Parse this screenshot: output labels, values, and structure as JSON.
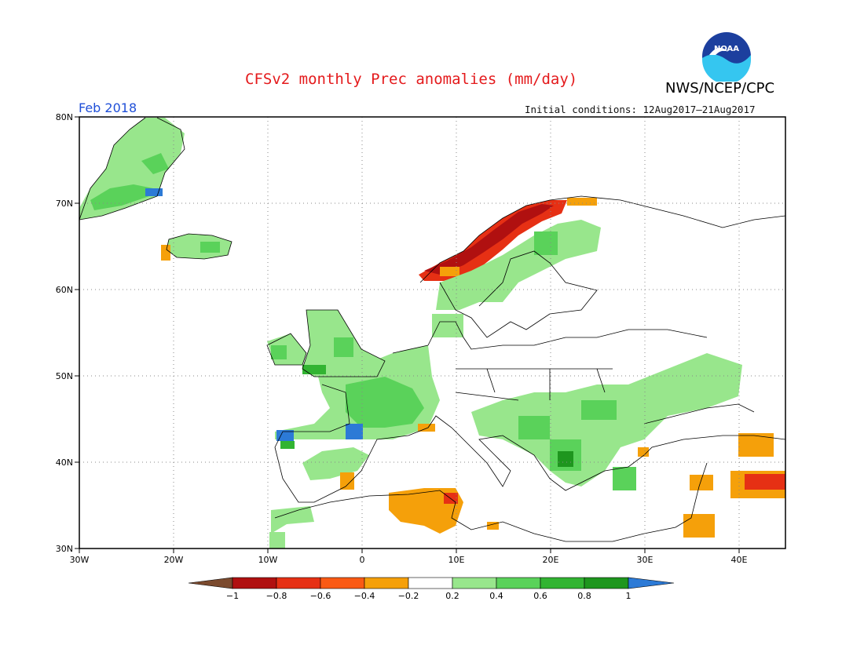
{
  "header": {
    "title": "CFSv2 monthly Prec anomalies (mm/day)",
    "agency": "NWS/NCEP/CPC",
    "logo_text": "NOAA",
    "period": "Feb 2018",
    "initial_conditions": "Initial conditions: 12Aug2017–21Aug2017"
  },
  "map": {
    "lon_labels": [
      "30W",
      "20W",
      "10W",
      "0",
      "10E",
      "20E",
      "30E",
      "40E"
    ],
    "lat_labels": [
      "80N",
      "70N",
      "60N",
      "50N",
      "40N",
      "30N"
    ],
    "grid": "dotted"
  },
  "colorbar": {
    "ticks": [
      "−1",
      "−0.8",
      "−0.6",
      "−0.4",
      "−0.2",
      "0.2",
      "0.4",
      "0.6",
      "0.8",
      "1"
    ],
    "colors": [
      "#7b4a2e",
      "#b01010",
      "#e63014",
      "#fa5a14",
      "#f5a00a",
      "#ffffff",
      "#98e68c",
      "#5ad25a",
      "#32b432",
      "#1e961e",
      "#2c7ad6"
    ]
  },
  "colors": {
    "title": "#e41a1c",
    "period": "#1f4fd8",
    "coast": "#000000"
  }
}
